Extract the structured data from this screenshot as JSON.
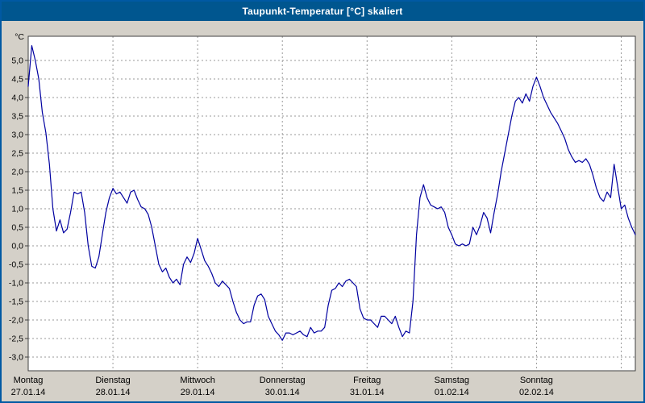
{
  "window": {
    "title": "Taupunkt-Temperatur [°C] skaliert"
  },
  "chart_data": {
    "type": "line",
    "title": "Taupunkt-Temperatur [°C] skaliert",
    "y_unit": "°C",
    "ylim": [
      -3.0,
      5.0
    ],
    "y_tick_step": 0.5,
    "y_tick_labels": [
      "5,0",
      "4,5",
      "4,0",
      "3,5",
      "3,0",
      "2,5",
      "2,0",
      "1,5",
      "1,0",
      "0,5",
      "0,0",
      "-0,5",
      "-1,0",
      "-1,5",
      "-2,0",
      "-2,5",
      "-3,0"
    ],
    "x_days": [
      {
        "weekday": "Montag",
        "date": "27.01.14"
      },
      {
        "weekday": "Dienstag",
        "date": "28.01.14"
      },
      {
        "weekday": "Mittwoch",
        "date": "29.01.14"
      },
      {
        "weekday": "Donnerstag",
        "date": "30.01.14"
      },
      {
        "weekday": "Freitag",
        "date": "31.01.14"
      },
      {
        "weekday": "Samstag",
        "date": "01.02.14"
      },
      {
        "weekday": "Sonntag",
        "date": "02.02.14"
      }
    ],
    "x_start_hour": 0,
    "x_step_hours": 1,
    "grid": "dashed",
    "legend": "none",
    "theme": {
      "titlebar_bg": "#00568F",
      "window_border": "#0059A3",
      "surface": "#D4D0C8",
      "plot_bg": "#FFFFFF",
      "grid": "#9A9A9A",
      "axis": "#404040",
      "line": "#0000A0",
      "text": "#000000"
    },
    "series": [
      {
        "name": "Taupunkt-Temperatur",
        "color": "#0000A0",
        "values": [
          4.3,
          5.4,
          5.0,
          4.5,
          3.6,
          3.05,
          2.2,
          1.0,
          0.4,
          0.7,
          0.35,
          0.45,
          0.9,
          1.45,
          1.4,
          1.45,
          0.9,
          0.0,
          -0.55,
          -0.6,
          -0.3,
          0.3,
          0.9,
          1.3,
          1.55,
          1.4,
          1.45,
          1.3,
          1.15,
          1.45,
          1.5,
          1.25,
          1.05,
          1.0,
          0.85,
          0.5,
          0.0,
          -0.5,
          -0.7,
          -0.6,
          -0.85,
          -1.0,
          -0.9,
          -1.05,
          -0.5,
          -0.3,
          -0.45,
          -0.2,
          0.2,
          -0.1,
          -0.4,
          -0.55,
          -0.75,
          -1.0,
          -1.1,
          -0.95,
          -1.05,
          -1.15,
          -1.5,
          -1.8,
          -2.0,
          -2.1,
          -2.05,
          -2.05,
          -1.6,
          -1.35,
          -1.3,
          -1.45,
          -1.9,
          -2.1,
          -2.3,
          -2.4,
          -2.55,
          -2.35,
          -2.35,
          -2.4,
          -2.35,
          -2.3,
          -2.4,
          -2.45,
          -2.2,
          -2.35,
          -2.3,
          -2.3,
          -2.2,
          -1.6,
          -1.2,
          -1.15,
          -1.0,
          -1.1,
          -0.95,
          -0.9,
          -1.0,
          -1.1,
          -1.7,
          -1.95,
          -2.0,
          -2.0,
          -2.1,
          -2.2,
          -1.9,
          -1.9,
          -2.0,
          -2.1,
          -1.9,
          -2.2,
          -2.45,
          -2.3,
          -2.35,
          -1.5,
          0.3,
          1.3,
          1.65,
          1.3,
          1.1,
          1.05,
          1.0,
          1.05,
          0.9,
          0.5,
          0.3,
          0.05,
          0.0,
          0.05,
          0.0,
          0.05,
          0.5,
          0.3,
          0.55,
          0.9,
          0.75,
          0.35,
          0.9,
          1.4,
          2.0,
          2.5,
          3.0,
          3.5,
          3.9,
          4.0,
          3.85,
          4.1,
          3.9,
          4.3,
          4.55,
          4.3,
          4.0,
          3.8,
          3.6,
          3.45,
          3.3,
          3.1,
          2.9,
          2.6,
          2.4,
          2.25,
          2.3,
          2.25,
          2.35,
          2.2,
          1.9,
          1.55,
          1.3,
          1.2,
          1.45,
          1.3,
          2.2,
          1.6,
          1.0,
          1.1,
          0.75,
          0.5,
          0.3
        ]
      }
    ]
  }
}
